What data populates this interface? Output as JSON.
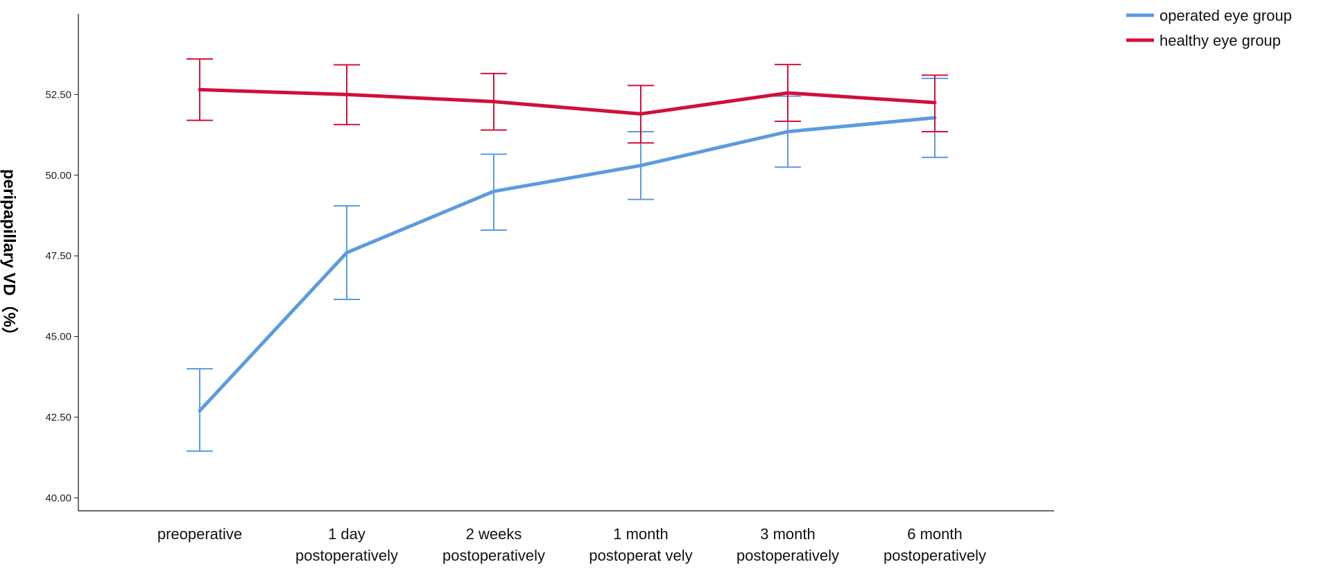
{
  "chart_data": {
    "type": "line",
    "title": "",
    "xlabel": "",
    "ylabel": "peripapillary VD（%）",
    "ylim": [
      39.6,
      55.0
    ],
    "yticks": [
      40.0,
      42.5,
      45.0,
      47.5,
      50.0,
      52.5
    ],
    "ytick_labels": [
      "40.00",
      "42.50",
      "45.00",
      "47.50",
      "50.00",
      "52.50"
    ],
    "grid": false,
    "legend_position": "top-right",
    "categories": [
      [
        "preoperative"
      ],
      [
        "1 day",
        "postoperatively"
      ],
      [
        "2 weeks",
        "postoperatively"
      ],
      [
        "1 month",
        "postoperat vely"
      ],
      [
        "3 month",
        "postoperatively"
      ],
      [
        "6 month",
        "postoperatively"
      ]
    ],
    "series": [
      {
        "name": "operated eye group",
        "color": "#5b9be0",
        "values": [
          42.7,
          47.6,
          49.5,
          50.3,
          51.35,
          51.78
        ],
        "error_low": [
          41.45,
          46.15,
          48.3,
          49.25,
          50.25,
          50.55
        ],
        "error_high": [
          44.0,
          49.05,
          50.65,
          51.35,
          52.45,
          53.0
        ]
      },
      {
        "name": "healthy eye group",
        "color": "#d0103a",
        "values": [
          52.65,
          52.5,
          52.28,
          51.9,
          52.55,
          52.25
        ],
        "error_low": [
          51.7,
          51.57,
          51.4,
          51.0,
          51.67,
          51.35
        ],
        "error_high": [
          53.6,
          53.42,
          53.15,
          52.78,
          53.43,
          53.1
        ]
      }
    ]
  }
}
